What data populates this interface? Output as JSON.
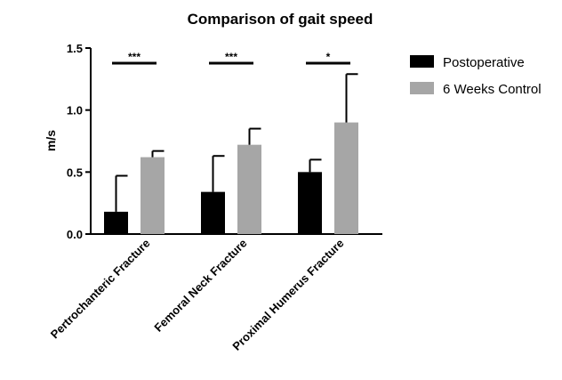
{
  "chart_data": {
    "type": "bar",
    "title": "Comparison of gait speed",
    "xlabel": "",
    "ylabel": "m/s",
    "ylim": [
      0,
      1.5
    ],
    "yticks": [
      "0.0",
      "0.5",
      "1.0",
      "1.5"
    ],
    "categories": [
      "Pertrochanteric Fracture",
      "Femoral Neck Fracture",
      "Proximal Humerus Fracture"
    ],
    "series": [
      {
        "name": "Postoperative",
        "color": "#000000",
        "values": [
          0.18,
          0.34,
          0.5
        ],
        "errors": [
          0.29,
          0.29,
          0.1
        ]
      },
      {
        "name": "6 Weeks Control",
        "color": "#a6a6a6",
        "values": [
          0.62,
          0.72,
          0.9
        ],
        "errors": [
          0.05,
          0.13,
          0.39
        ]
      }
    ],
    "significance": [
      "***",
      "***",
      "*"
    ],
    "grid": false,
    "legend_position": "right"
  }
}
